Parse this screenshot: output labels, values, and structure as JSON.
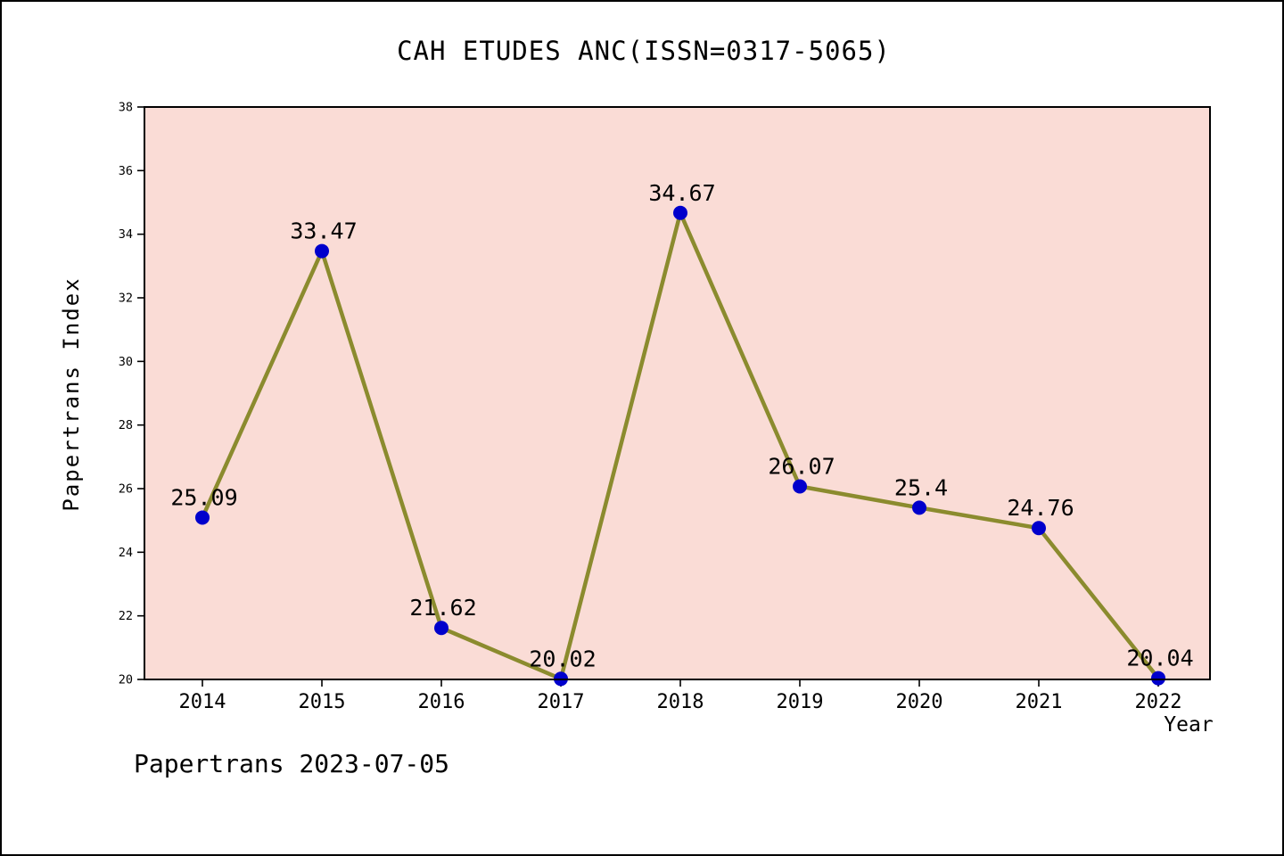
{
  "page": {
    "background": "#ffffff",
    "border_color": "#000000"
  },
  "chart_data": {
    "type": "line",
    "title": "CAH ETUDES ANC(ISSN=0317-5065)",
    "xlabel": "Year",
    "ylabel": "Papertrans Index",
    "categories": [
      "2014",
      "2015",
      "2016",
      "2017",
      "2018",
      "2019",
      "2020",
      "2021",
      "2022"
    ],
    "values": [
      25.09,
      33.47,
      21.62,
      20.02,
      34.67,
      26.07,
      25.4,
      24.76,
      20.04
    ],
    "value_labels": [
      "25.09",
      "33.47",
      "21.62",
      "20.02",
      "34.67",
      "26.07",
      "25.4",
      "24.76",
      "20.04"
    ],
    "ylim": [
      20,
      38
    ],
    "ytick_step": 2,
    "ytick_labels": [
      "20",
      "22",
      "24",
      "26",
      "28",
      "30",
      "32",
      "34",
      "36",
      "38"
    ],
    "grid": false,
    "legend_position": "none",
    "plot_bg_color": "#FADCD6",
    "line_color": "#8B8B2E",
    "marker_color": "#0000CC",
    "axis_color": "#000000",
    "text_color": "#000000"
  },
  "footer": {
    "text": "Papertrans 2023-07-05"
  }
}
